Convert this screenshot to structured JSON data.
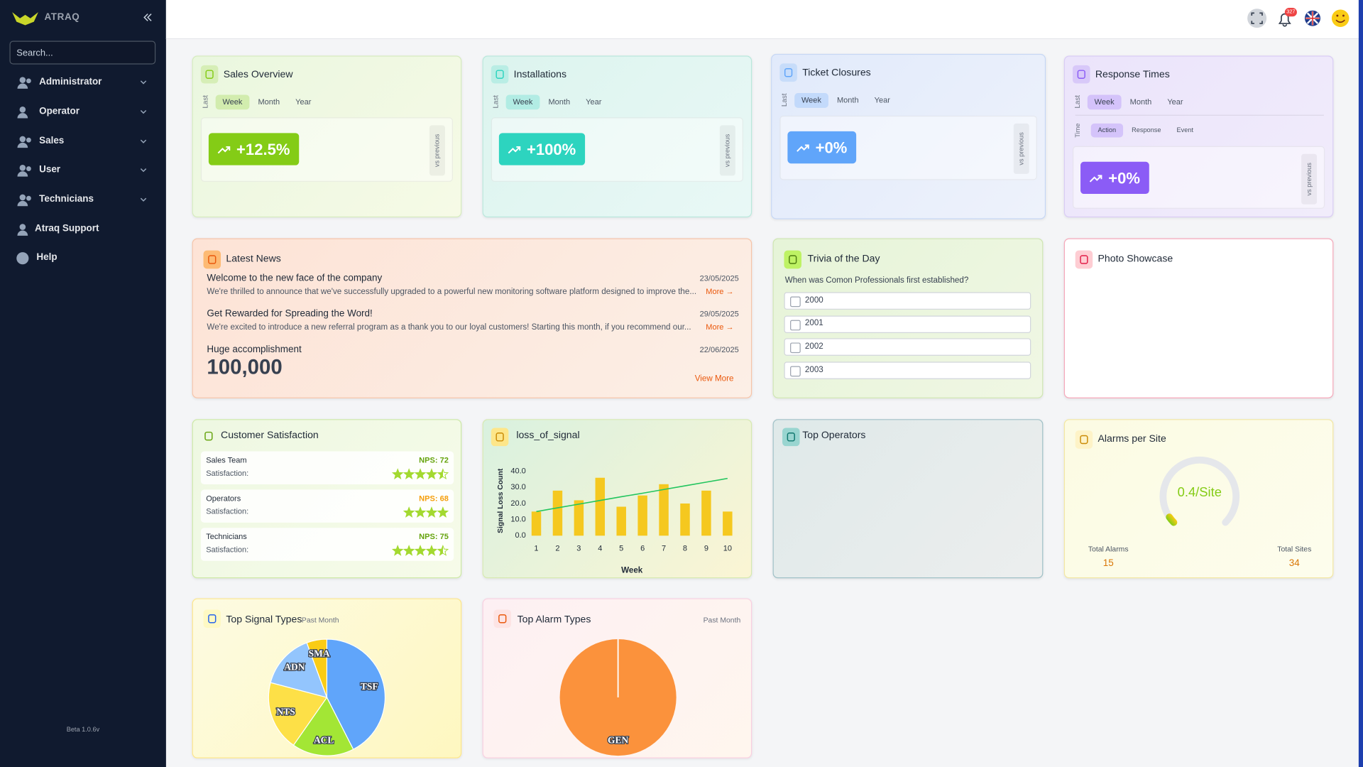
{
  "sidebar": {
    "brand": "ATRAQ",
    "search_placeholder": "Search...",
    "menu": [
      "Administrator",
      "Operator",
      "Sales",
      "User",
      "Technicians",
      "Atraq Support",
      "Help"
    ],
    "version": "Beta 1.0.6v"
  },
  "topbar": {
    "notification_count": "327"
  },
  "kpi_cards": [
    {
      "title": "Sales Overview",
      "period_label": "Last",
      "periods": [
        "Week",
        "Month",
        "Year"
      ],
      "selected_period": 0,
      "value": "+12.5%",
      "comparison": "vs previous",
      "color": "#84cc16"
    },
    {
      "title": "Installations",
      "period_label": "Last",
      "periods": [
        "Week",
        "Month",
        "Year"
      ],
      "selected_period": 0,
      "value": "+100%",
      "comparison": "vs previous",
      "color": "#2dd4bf"
    },
    {
      "title": "Ticket Closures",
      "period_label": "Last",
      "periods": [
        "Week",
        "Month",
        "Year"
      ],
      "selected_period": 0,
      "value": "+0%",
      "comparison": "vs previous",
      "color": "#60a5fa"
    },
    {
      "title": "Response Times",
      "period_label": "Last",
      "periods": [
        "Week",
        "Month",
        "Year"
      ],
      "selected_period": 0,
      "metric_label": "Time",
      "metrics": [
        "Action",
        "Response",
        "Event"
      ],
      "selected_metric": 0,
      "value": "+0%",
      "comparison": "vs previous",
      "color": "#8b5cf6"
    }
  ],
  "news": {
    "title": "Latest News",
    "items": [
      {
        "title": "Welcome to the new face of the company",
        "date": "23/05/2025",
        "excerpt": "We're thrilled to announce that we've successfully upgraded to a powerful new monitoring software platform designed to improve the...",
        "more": "More →"
      },
      {
        "title": "Get Rewarded for Spreading the Word!",
        "date": "29/05/2025",
        "excerpt": "We're excited to introduce a new referral program as a thank you to our loyal customers! Starting this month, if you recommend our...",
        "more": "More →"
      },
      {
        "title": "Huge accomplishment",
        "date": "22/06/2025",
        "excerpt": "100,000"
      }
    ],
    "view_more": "View More"
  },
  "trivia": {
    "title": "Trivia of the Day",
    "question": "When was Comon Professionals first established?",
    "options": [
      "2000",
      "2001",
      "2002",
      "2003"
    ]
  },
  "photo_showcase": {
    "title": "Photo Showcase"
  },
  "customer_satisfaction": {
    "title": "Customer Satisfaction",
    "rows": [
      {
        "team": "Sales Team",
        "nps": "NPS: 72",
        "nps_color": "#65a30d",
        "label": "Satisfaction:",
        "rating": 4.5
      },
      {
        "team": "Operators",
        "nps": "NPS: 68",
        "nps_color": "#f59e0b",
        "label": "Satisfaction:",
        "rating": 4
      },
      {
        "team": "Technicians",
        "nps": "NPS: 75",
        "nps_color": "#65a30d",
        "label": "Satisfaction:",
        "rating": 4.5
      }
    ]
  },
  "loss_of_signal": {
    "type": "bar",
    "title": "loss_of_signal",
    "x_label": "Week",
    "y_label": "Signal Loss Count",
    "categories": [
      "1",
      "2",
      "3",
      "4",
      "5",
      "6",
      "7",
      "8",
      "9",
      "10"
    ],
    "values": [
      15,
      28,
      22,
      36,
      18,
      25,
      32,
      20,
      28,
      15
    ],
    "color": "#f5c81f",
    "trend": [
      15,
      17.3,
      19.6,
      21.9,
      24.2,
      26.4,
      28.7,
      31,
      33.3,
      35.6
    ],
    "trend_color": "#22c55e",
    "ylim": [
      0,
      40
    ],
    "yticks": [
      {
        "value": 0,
        "label": "0.0"
      },
      {
        "value": 10,
        "label": "10.0"
      },
      {
        "value": 20,
        "label": "20.0"
      },
      {
        "value": 30,
        "label": "30.0"
      },
      {
        "value": 40,
        "label": "40.0"
      }
    ]
  },
  "top_operators": {
    "title": "Top Operators"
  },
  "alarms_per_site": {
    "title": "Alarms per Site",
    "value": 0.4,
    "value_label": "0.4/Site",
    "range": [
      0,
      10
    ],
    "total_alarms_label": "Total Alarms",
    "total_alarms": 15,
    "total_sites_label": "Total Sites",
    "total_sites": 34
  },
  "top_signal_types": {
    "type": "pie",
    "title": "Top Signal Types",
    "subtitle": "Past Month",
    "categories": [
      "TSF",
      "ACL",
      "NTS",
      "ADN",
      "SMA"
    ],
    "values": [
      42.5,
      17.2,
      19.4,
      15.3,
      5.6
    ],
    "colors": [
      "#60a5fa",
      "#a3e635",
      "#fde047",
      "#93c5fd",
      "#facc15"
    ]
  },
  "top_alarm_types": {
    "type": "pie",
    "title": "Top Alarm Types",
    "subtitle": "Past Month",
    "categories": [
      "GEN"
    ],
    "values": [
      100
    ],
    "colors": [
      "#fb923c"
    ]
  }
}
